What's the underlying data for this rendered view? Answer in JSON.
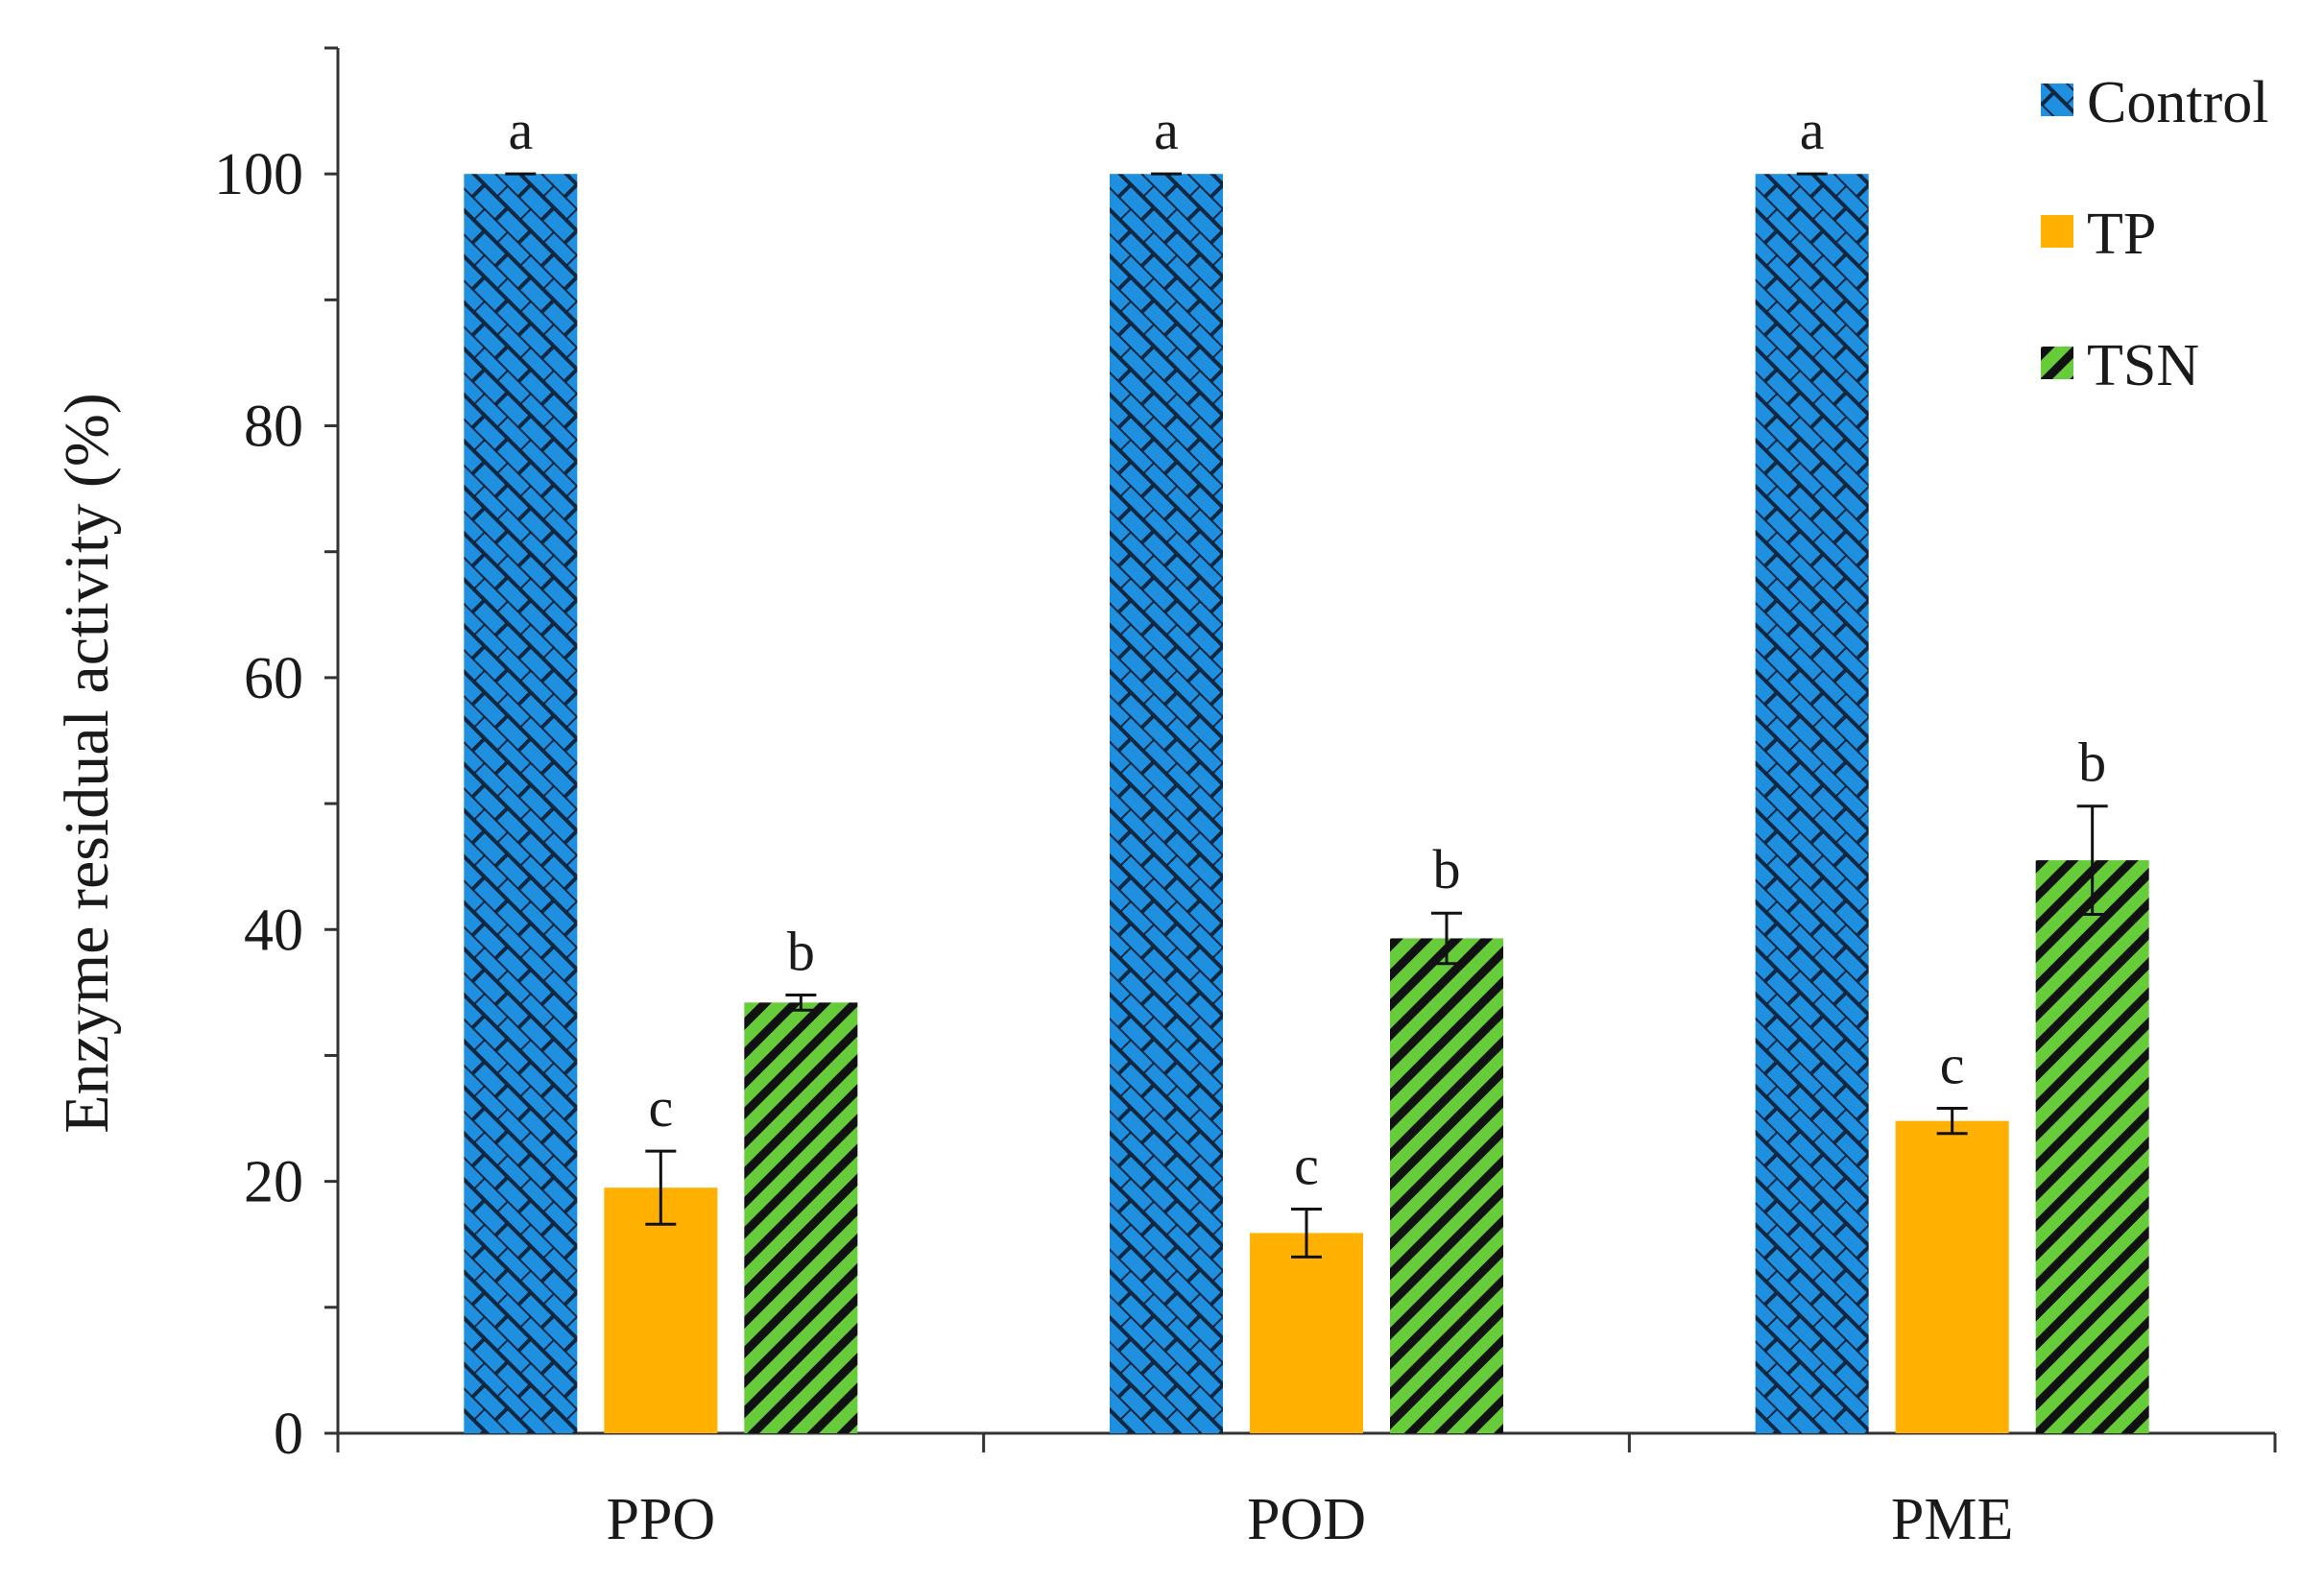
{
  "chart_data": {
    "type": "bar",
    "title": "",
    "xlabel": "",
    "ylabel": "Enzyme residual activity (%)",
    "ylim": [
      0,
      110
    ],
    "yticks": [
      0,
      20,
      40,
      60,
      80,
      100
    ],
    "grid": false,
    "legend_position": "top-right",
    "categories": [
      "PPO",
      "POD",
      "PME"
    ],
    "series": [
      {
        "name": "Control",
        "color": "#1f8fe0",
        "pattern": "brick-hatch",
        "values": [
          100,
          100,
          100
        ],
        "errors": [
          0,
          0,
          0
        ],
        "letters": [
          "a",
          "a",
          "a"
        ]
      },
      {
        "name": "TP",
        "color": "#ffb000",
        "pattern": "solid",
        "values": [
          19.5,
          15.9,
          24.8
        ],
        "errors": [
          2.9,
          1.9,
          1.0
        ],
        "letters": [
          "c",
          "c",
          "c"
        ]
      },
      {
        "name": "TSN",
        "color": "#66cc3a",
        "pattern": "diagonal-stripes",
        "values": [
          34.2,
          39.3,
          45.5
        ],
        "errors": [
          0.6,
          2.0,
          4.3
        ],
        "letters": [
          "b",
          "b",
          "b"
        ]
      }
    ]
  }
}
